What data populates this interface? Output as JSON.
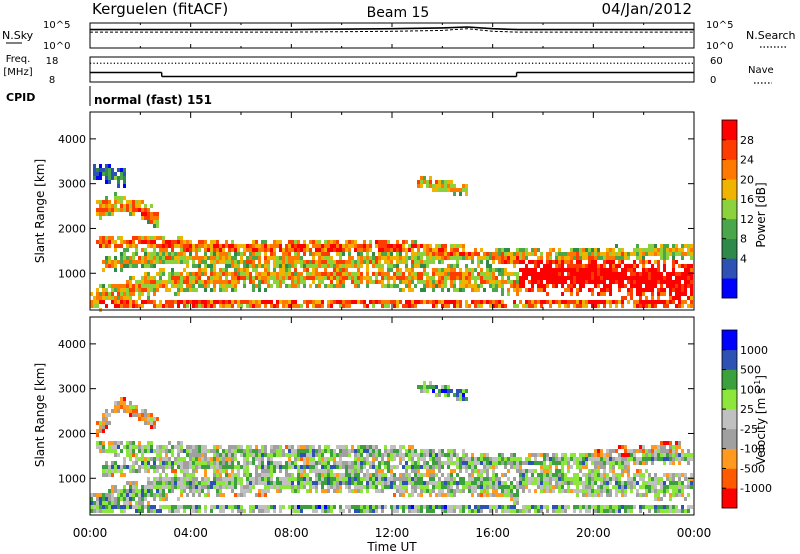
{
  "header": {
    "station": "Kerguelen (fitACF)",
    "beam": "Beam 15",
    "date": "04/Jan/2012"
  },
  "chart_data": [
    {
      "type": "line",
      "panel": "noise",
      "left_label": "N.Sky",
      "right_label": "N.Search",
      "left_ticks": [
        "10^5",
        "10^0"
      ],
      "right_ticks": [
        "10^5",
        "10^0"
      ],
      "x_hours": [
        0,
        4,
        8,
        12,
        14,
        15,
        16,
        17,
        18,
        20,
        24
      ],
      "sky_level": [
        0.15,
        0.15,
        0.15,
        0.1,
        0.05,
        0.0,
        0.1,
        0.15,
        0.15,
        0.15,
        0.15
      ],
      "search_level": [
        0.3,
        0.3,
        0.3,
        0.25,
        0.2,
        0.1,
        0.25,
        0.3,
        0.3,
        0.3,
        0.3
      ]
    },
    {
      "type": "line",
      "panel": "frequency",
      "left_label_lines": [
        "Freq.",
        "[MHz]"
      ],
      "right_label": "Nave",
      "left_ticks": [
        "18",
        "8"
      ],
      "right_ticks": [
        "60",
        "0"
      ],
      "freq_ylim": [
        8,
        18
      ],
      "nave_ylim": [
        0,
        60
      ],
      "freq_segments": [
        {
          "x": [
            0,
            2.85
          ],
          "y": 11.8
        },
        {
          "x": [
            2.85,
            16.95
          ],
          "y": 10.2
        },
        {
          "x": [
            16.95,
            24
          ],
          "y": 11.8
        }
      ],
      "nave_level": 45
    },
    {
      "type": "table",
      "panel": "cpid",
      "label": "CPID",
      "value": "normal (fast) 151"
    },
    {
      "type": "heatmap",
      "panel": "power",
      "ylabel": "Slant Range [km]",
      "xlim": [
        0,
        24
      ],
      "ylim": [
        180,
        4600
      ],
      "yticks": [
        1000,
        2000,
        3000,
        4000
      ],
      "colorbar_label": "Power [dB]",
      "colorbar_ticks": [
        "28",
        "24",
        "20",
        "16",
        "12",
        "8",
        "4"
      ],
      "colorbar_colors": [
        "#0000ff",
        "#2e52b4",
        "#2f8a4a",
        "#4aa64a",
        "#8cd23c",
        "#f0b400",
        "#ff7800",
        "#ff3c00",
        "#ff0000"
      ],
      "bands": [
        {
          "t": [
            0,
            2.8,
            6,
            10,
            13,
            16,
            17
          ],
          "r": [
            400,
            800,
            900,
            950,
            900,
            900,
            700
          ],
          "w": 280,
          "level": 0.55
        },
        {
          "t": [
            0.2,
            2.8,
            7,
            11,
            14,
            17
          ],
          "r": [
            1700,
            1650,
            1550,
            1600,
            1500,
            1300
          ],
          "w": 160,
          "level": 0.7
        },
        {
          "t": [
            0.5,
            3,
            9,
            13,
            17,
            20,
            24
          ],
          "r": [
            1200,
            1350,
            1250,
            1300,
            1400,
            1400,
            1500
          ],
          "w": 180,
          "level": 0.5
        },
        {
          "t": [
            0.2,
            1.2,
            2.8
          ],
          "r": [
            2400,
            2600,
            2200
          ],
          "w": 220,
          "level": 0.6
        },
        {
          "t": [
            13,
            15
          ],
          "r": [
            3050,
            2850
          ],
          "w": 130,
          "level": 0.55
        },
        {
          "t": [
            17,
            24
          ],
          "r": [
            1000,
            800
          ],
          "w": 420,
          "level": 0.95
        },
        {
          "t": [
            0,
            24
          ],
          "r": [
            330,
            330
          ],
          "w": 90,
          "level": 0.75
        },
        {
          "t": [
            0.1,
            1.4
          ],
          "r": [
            3300,
            3100
          ],
          "w": 200,
          "level": 0.2
        }
      ]
    },
    {
      "type": "heatmap",
      "panel": "velocity",
      "xlabel": "Time UT",
      "ylabel": "Slant Range [km]",
      "xlim": [
        0,
        24
      ],
      "ylim": [
        180,
        4600
      ],
      "yticks": [
        1000,
        2000,
        3000,
        4000
      ],
      "xticks": [
        "00:00",
        "04:00",
        "08:00",
        "12:00",
        "16:00",
        "20:00",
        "00:00"
      ],
      "colorbar_label_parts": [
        "Velocity [m s",
        "-1",
        "]"
      ],
      "colorbar_ticks": [
        "1000",
        "500",
        "100",
        "25",
        "-25",
        "-100",
        "-500",
        "-1000"
      ],
      "colorbar_colors": [
        "#ff0000",
        "#ff5a00",
        "#ff9a1e",
        "#a0a0a0",
        "#c0c0c0",
        "#8ce63c",
        "#3ca03c",
        "#2e52b4",
        "#0000ff"
      ],
      "bands": [
        {
          "t": [
            0,
            2.8,
            6,
            10,
            13,
            16,
            17
          ],
          "r": [
            400,
            800,
            900,
            950,
            900,
            900,
            700
          ],
          "w": 280,
          "level": 0.5
        },
        {
          "t": [
            0.2,
            2.8,
            7,
            11,
            14,
            17
          ],
          "r": [
            1700,
            1650,
            1550,
            1600,
            1500,
            1300
          ],
          "w": 160,
          "level": 0.5
        },
        {
          "t": [
            0.5,
            3,
            9,
            13,
            17,
            20,
            24
          ],
          "r": [
            1200,
            1350,
            1250,
            1300,
            1400,
            1400,
            1500
          ],
          "w": 180,
          "level": 0.5
        },
        {
          "t": [
            0.2,
            1.2,
            2.8
          ],
          "r": [
            2000,
            2700,
            2200
          ],
          "w": 180,
          "level": 0.3
        },
        {
          "t": [
            13,
            15
          ],
          "r": [
            3050,
            2850
          ],
          "w": 130,
          "level": 0.65
        },
        {
          "t": [
            20,
            23.5
          ],
          "r": [
            1500,
            1700
          ],
          "w": 140,
          "level": 0.25
        },
        {
          "t": [
            17,
            24
          ],
          "r": [
            1000,
            800
          ],
          "w": 300,
          "level": 0.5
        },
        {
          "t": [
            0,
            24
          ],
          "r": [
            330,
            330
          ],
          "w": 90,
          "level": 0.6
        }
      ]
    }
  ]
}
